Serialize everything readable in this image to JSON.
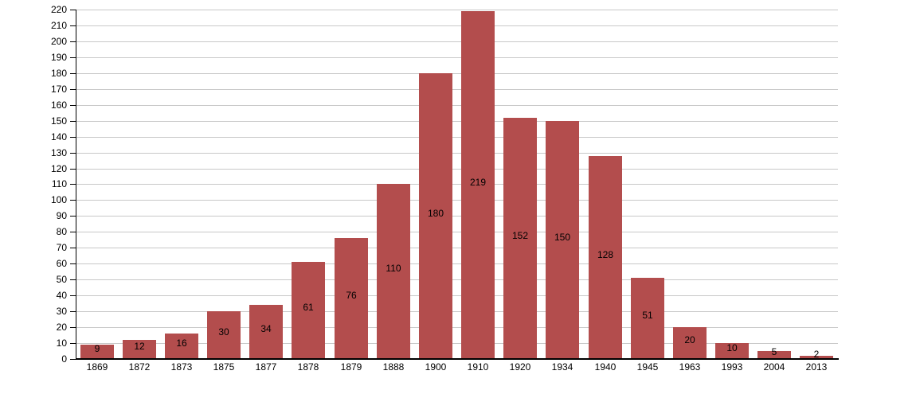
{
  "chart_data": {
    "type": "bar",
    "title": "",
    "xlabel": "",
    "ylabel": "",
    "categories": [
      "1869",
      "1872",
      "1873",
      "1875",
      "1877",
      "1878",
      "1879",
      "1888",
      "1900",
      "1910",
      "1920",
      "1934",
      "1940",
      "1945",
      "1963",
      "1993",
      "2004",
      "2013"
    ],
    "values": [
      9,
      12,
      16,
      30,
      34,
      61,
      76,
      110,
      180,
      219,
      152,
      150,
      128,
      51,
      20,
      10,
      5,
      2
    ],
    "ylim": [
      0,
      220
    ],
    "ytick_step": 10,
    "yticks": [
      0,
      10,
      20,
      30,
      40,
      50,
      60,
      70,
      80,
      90,
      100,
      110,
      120,
      130,
      140,
      150,
      160,
      170,
      180,
      190,
      200,
      210,
      220
    ],
    "grid": true,
    "legend": false,
    "value_labels_shown": true,
    "colors": {
      "bar": "#b34d4d",
      "grid": "#c8c8c8",
      "axis": "#000000",
      "label": "#000000",
      "background": "#ffffff"
    }
  }
}
